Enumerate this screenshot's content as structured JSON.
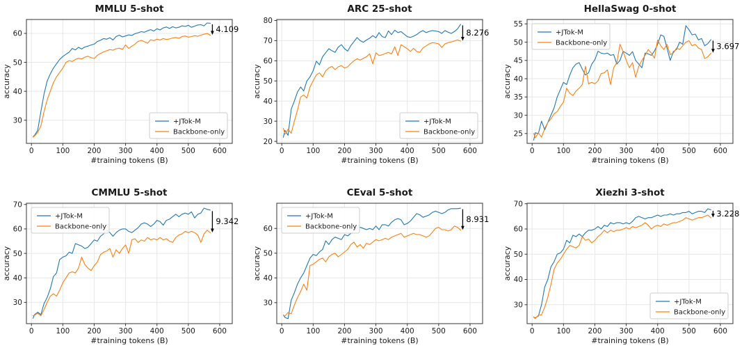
{
  "figure_name": "tokenizer-benchmark-comparison",
  "style": {
    "background": "#ffffff",
    "blue": "#1f77b4",
    "orange": "#ff7f0e",
    "grid_color": "#e7e7e7",
    "spine_color": "#333333",
    "tick_color": "#333333",
    "text_color": "#1a1a1a",
    "annotation_color": "#000000",
    "legend_border": "#cccccc",
    "legend_bg": "#ffffff"
  },
  "x_tokens": [
    5,
    10,
    20,
    30,
    40,
    50,
    60,
    70,
    80,
    90,
    100,
    110,
    120,
    130,
    140,
    150,
    160,
    170,
    180,
    190,
    200,
    210,
    220,
    230,
    240,
    250,
    260,
    270,
    280,
    290,
    300,
    310,
    320,
    330,
    340,
    350,
    360,
    370,
    380,
    390,
    400,
    410,
    420,
    430,
    440,
    450,
    460,
    470,
    480,
    490,
    500,
    510,
    520,
    530,
    540,
    550,
    560,
    570
  ],
  "chart_data": [
    {
      "type": "line",
      "title": "MMLU 5-shot",
      "xlabel": "#training tokens (B)",
      "ylabel": "accuracy",
      "xlim": [
        -16,
        640
      ],
      "ylim": [
        22,
        64.8
      ],
      "xticks": [
        0,
        100,
        200,
        300,
        400,
        500,
        600
      ],
      "yticks": [
        30,
        40,
        50,
        60
      ],
      "grid": true,
      "legend_pos": "lower-right",
      "annotation": {
        "label": "4.109"
      },
      "series": [
        {
          "name": "+JTok-M",
          "color_key": "blue",
          "values": [
            24.3,
            24.8,
            26.5,
            33.0,
            39.0,
            43.5,
            46.0,
            48.0,
            49.5,
            51.0,
            52.0,
            52.8,
            53.5,
            54.8,
            54.3,
            55.2,
            54.6,
            55.3,
            55.6,
            56.0,
            56.3,
            57.2,
            57.6,
            58.2,
            58.0,
            58.5,
            57.7,
            58.9,
            59.4,
            58.8,
            59.1,
            59.5,
            59.3,
            59.9,
            60.2,
            60.6,
            60.4,
            60.9,
            61.3,
            60.8,
            61.6,
            61.2,
            61.9,
            62.2,
            61.7,
            62.3,
            61.9,
            62.1,
            62.6,
            62.4,
            62.8,
            62.1,
            62.5,
            62.9,
            63.0,
            62.6,
            63.6,
            63.5
          ]
        },
        {
          "name": "Backbone-only",
          "color_key": "orange",
          "values": [
            24.2,
            24.6,
            25.8,
            28.0,
            33.0,
            37.0,
            40.0,
            43.0,
            45.0,
            46.5,
            48.0,
            50.0,
            50.6,
            50.3,
            51.0,
            51.4,
            51.2,
            51.8,
            52.1,
            51.6,
            51.3,
            52.4,
            53.1,
            53.6,
            54.0,
            54.4,
            54.2,
            54.7,
            54.9,
            54.5,
            56.0,
            54.8,
            55.6,
            56.3,
            57.2,
            57.6,
            57.1,
            56.6,
            57.8,
            57.5,
            58.0,
            57.7,
            58.2,
            57.9,
            58.1,
            58.4,
            58.6,
            58.3,
            58.9,
            59.1,
            58.7,
            58.9,
            59.2,
            59.0,
            59.4,
            59.7,
            60.0,
            59.4
          ]
        }
      ]
    },
    {
      "type": "line",
      "title": "ARC 25-shot",
      "xlabel": "#training tokens (B)",
      "ylabel": "accuracy",
      "xlim": [
        -16,
        640
      ],
      "ylim": [
        19,
        80.5
      ],
      "xticks": [
        0,
        100,
        200,
        300,
        400,
        500,
        600
      ],
      "yticks": [
        20,
        30,
        40,
        50,
        60,
        70,
        80
      ],
      "grid": true,
      "legend_pos": "lower-right",
      "annotation": {
        "label": "8.276"
      },
      "series": [
        {
          "name": "+JTok-M",
          "color_key": "blue",
          "values": [
            22.0,
            25.5,
            23.0,
            36.0,
            40.0,
            44.5,
            47.0,
            45.0,
            50.0,
            52.0,
            55.0,
            59.8,
            58.0,
            62.0,
            64.0,
            66.0,
            65.0,
            64.2,
            66.8,
            68.0,
            66.0,
            64.8,
            67.5,
            69.5,
            71.5,
            70.0,
            69.2,
            70.3,
            71.2,
            72.5,
            71.4,
            74.0,
            72.0,
            71.5,
            74.8,
            73.0,
            75.2,
            74.0,
            74.5,
            73.2,
            72.0,
            71.6,
            72.2,
            73.0,
            74.2,
            75.0,
            74.0,
            74.6,
            75.0,
            74.8,
            74.5,
            73.6,
            75.0,
            74.2,
            73.6,
            74.5,
            75.8,
            78.1
          ]
        },
        {
          "name": "Backbone-only",
          "color_key": "orange",
          "values": [
            26.5,
            23.5,
            26.0,
            24.0,
            30.0,
            35.5,
            42.0,
            43.0,
            41.5,
            47.0,
            50.0,
            53.0,
            54.0,
            52.0,
            55.0,
            56.5,
            57.2,
            55.6,
            57.0,
            57.6,
            56.4,
            57.0,
            58.6,
            60.0,
            61.0,
            60.4,
            61.2,
            62.0,
            63.5,
            58.5,
            64.0,
            62.6,
            63.0,
            63.6,
            64.2,
            63.4,
            67.0,
            62.6,
            68.0,
            67.0,
            66.0,
            64.6,
            66.2,
            64.6,
            64.2,
            66.4,
            67.4,
            68.4,
            69.0,
            68.8,
            68.4,
            66.6,
            68.4,
            69.0,
            69.4,
            69.8,
            70.4,
            69.8
          ]
        }
      ]
    },
    {
      "type": "line",
      "title": "HellaSwag 0-shot",
      "xlabel": "#training tokens (B)",
      "ylabel": "accuracy",
      "xlim": [
        -16,
        640
      ],
      "ylim": [
        22.3,
        56.2
      ],
      "xticks": [
        0,
        100,
        200,
        300,
        400,
        500,
        600
      ],
      "yticks": [
        25,
        30,
        35,
        40,
        45,
        50,
        55
      ],
      "grid": true,
      "legend_pos": "upper-left",
      "annotation": {
        "label": "3.697"
      },
      "series": [
        {
          "name": "+JTok-M",
          "color_key": "blue",
          "values": [
            23.2,
            25.2,
            25.0,
            28.4,
            26.0,
            28.0,
            30.0,
            32.0,
            35.0,
            37.0,
            39.0,
            38.4,
            41.0,
            43.0,
            44.0,
            44.4,
            42.6,
            41.0,
            41.6,
            44.0,
            45.2,
            47.5,
            47.0,
            46.8,
            47.0,
            46.4,
            46.6,
            44.0,
            45.0,
            47.5,
            47.0,
            46.4,
            47.4,
            45.0,
            44.0,
            43.0,
            47.0,
            46.8,
            46.4,
            47.6,
            49.4,
            52.0,
            51.6,
            48.4,
            45.0,
            47.4,
            48.0,
            50.0,
            49.4,
            54.5,
            53.4,
            52.0,
            52.2,
            50.6,
            51.0,
            49.0,
            49.6,
            50.7
          ]
        },
        {
          "name": "Backbone-only",
          "color_key": "orange",
          "values": [
            25.0,
            23.8,
            25.2,
            24.0,
            26.4,
            28.0,
            29.0,
            30.4,
            31.0,
            32.4,
            33.6,
            37.4,
            36.0,
            35.4,
            36.6,
            37.4,
            38.4,
            43.4,
            38.6,
            39.0,
            38.6,
            39.4,
            41.4,
            41.6,
            42.4,
            38.4,
            43.0,
            44.4,
            49.4,
            47.4,
            45.0,
            43.0,
            44.4,
            40.4,
            43.4,
            45.0,
            46.4,
            48.0,
            47.0,
            45.6,
            50.6,
            49.0,
            48.0,
            49.4,
            46.6,
            47.0,
            48.4,
            48.0,
            49.0,
            50.0,
            50.4,
            49.0,
            49.4,
            48.4,
            48.0,
            45.5,
            46.0,
            47.0
          ]
        }
      ]
    },
    {
      "type": "line",
      "title": "CMMLU 5-shot",
      "xlabel": "#training tokens (B)",
      "ylabel": "accuracy",
      "xlim": [
        -16,
        640
      ],
      "ylim": [
        21.3,
        70.5
      ],
      "xticks": [
        0,
        100,
        200,
        300,
        400,
        500,
        600
      ],
      "yticks": [
        30,
        40,
        50,
        60,
        70
      ],
      "grid": true,
      "legend_pos": "upper-left",
      "annotation": {
        "label": "9.342"
      },
      "series": [
        {
          "name": "+JTok-M",
          "color_key": "blue",
          "values": [
            23.5,
            25.0,
            26.0,
            25.0,
            29.5,
            32.0,
            35.5,
            40.5,
            42.0,
            47.5,
            48.5,
            49.0,
            50.5,
            50.0,
            54.0,
            53.5,
            53.0,
            52.0,
            52.5,
            54.0,
            55.5,
            55.0,
            57.0,
            58.0,
            59.5,
            58.5,
            57.0,
            58.5,
            59.5,
            60.0,
            60.0,
            59.0,
            58.5,
            59.5,
            60.5,
            62.0,
            62.5,
            62.0,
            61.0,
            62.0,
            63.5,
            63.0,
            61.5,
            63.5,
            64.0,
            65.0,
            66.0,
            65.0,
            66.0,
            66.5,
            66.0,
            67.0,
            64.5,
            66.0,
            66.5,
            68.5,
            68.0,
            67.7
          ]
        },
        {
          "name": "Backbone-only",
          "color_key": "orange",
          "values": [
            24.5,
            24.8,
            25.5,
            24.5,
            27.0,
            30.0,
            32.5,
            33.5,
            32.5,
            35.0,
            38.0,
            40.0,
            42.0,
            42.5,
            42.0,
            44.0,
            48.5,
            45.5,
            44.0,
            43.0,
            45.0,
            46.5,
            49.5,
            50.5,
            51.0,
            52.0,
            48.5,
            51.5,
            50.0,
            52.0,
            53.5,
            50.0,
            55.5,
            56.0,
            54.5,
            55.5,
            55.0,
            56.5,
            55.5,
            56.0,
            55.5,
            56.5,
            55.5,
            56.0,
            55.0,
            54.5,
            56.5,
            57.5,
            58.0,
            59.0,
            58.5,
            59.0,
            58.5,
            57.5,
            54.5,
            58.0,
            59.5,
            58.4
          ]
        }
      ]
    },
    {
      "type": "line",
      "title": "CEval 5-shot",
      "xlabel": "#training tokens (B)",
      "ylabel": "accuracy",
      "xlim": [
        -16,
        640
      ],
      "ylim": [
        21.5,
        70.2
      ],
      "xticks": [
        0,
        100,
        200,
        300,
        400,
        500,
        600
      ],
      "yticks": [
        30,
        40,
        50,
        60
      ],
      "grid": true,
      "legend_pos": "upper-left",
      "annotation": {
        "label": "8.931"
      },
      "series": [
        {
          "name": "+JTok-M",
          "color_key": "blue",
          "values": [
            25.0,
            24.0,
            23.5,
            31.0,
            34.0,
            37.5,
            40.0,
            42.0,
            45.0,
            48.0,
            49.5,
            49.0,
            50.5,
            51.5,
            55.0,
            53.5,
            55.5,
            56.5,
            56.0,
            55.5,
            57.5,
            57.0,
            58.0,
            59.0,
            60.0,
            60.5,
            60.0,
            59.5,
            60.0,
            59.5,
            61.0,
            59.5,
            61.5,
            61.5,
            61.0,
            62.5,
            63.5,
            64.0,
            63.5,
            61.5,
            62.0,
            63.0,
            64.5,
            66.0,
            65.5,
            64.5,
            65.0,
            65.5,
            66.5,
            67.0,
            66.5,
            66.0,
            66.5,
            67.5,
            68.0,
            68.0,
            68.0,
            68.2
          ]
        },
        {
          "name": "Backbone-only",
          "color_key": "orange",
          "values": [
            25.0,
            24.5,
            26.0,
            25.5,
            29.0,
            32.0,
            34.5,
            37.5,
            35.0,
            45.0,
            45.5,
            46.5,
            47.5,
            48.0,
            46.5,
            48.5,
            49.5,
            50.0,
            48.5,
            49.5,
            50.5,
            51.5,
            53.5,
            54.5,
            52.5,
            53.5,
            52.0,
            54.0,
            53.5,
            54.5,
            55.5,
            55.0,
            55.5,
            56.0,
            55.5,
            56.5,
            57.0,
            57.5,
            58.0,
            56.5,
            57.0,
            57.5,
            58.0,
            57.5,
            57.5,
            57.0,
            56.5,
            57.0,
            58.5,
            60.0,
            60.5,
            59.5,
            59.5,
            59.0,
            59.5,
            61.0,
            60.5,
            59.3
          ]
        }
      ]
    },
    {
      "type": "line",
      "title": "Xiezhi 3-shot",
      "xlabel": "#training tokens (B)",
      "ylabel": "accuracy",
      "xlim": [
        -16,
        640
      ],
      "ylim": [
        22.5,
        70.2
      ],
      "xticks": [
        0,
        100,
        200,
        300,
        400,
        500,
        600
      ],
      "yticks": [
        30,
        40,
        50,
        60,
        70
      ],
      "grid": true,
      "legend_pos": "lower-right",
      "annotation": {
        "label": "3.228"
      },
      "series": [
        {
          "name": "+JTok-M",
          "color_key": "blue",
          "values": [
            25.0,
            24.8,
            25.5,
            30.0,
            37.0,
            40.0,
            45.0,
            47.0,
            50.0,
            50.5,
            52.0,
            55.5,
            54.5,
            57.5,
            57.0,
            58.0,
            57.0,
            58.5,
            59.5,
            59.5,
            60.0,
            61.0,
            60.0,
            61.5,
            61.0,
            62.5,
            62.0,
            62.5,
            62.5,
            62.0,
            62.5,
            62.0,
            63.0,
            64.5,
            65.0,
            64.5,
            64.0,
            64.5,
            64.5,
            65.0,
            65.5,
            65.0,
            65.5,
            65.5,
            66.0,
            65.5,
            66.0,
            66.0,
            66.5,
            66.5,
            67.0,
            66.0,
            66.5,
            67.0,
            67.0,
            66.5,
            68.0,
            67.6
          ]
        },
        {
          "name": "Backbone-only",
          "color_key": "orange",
          "values": [
            25.2,
            24.5,
            25.8,
            26.0,
            29.0,
            33.0,
            38.0,
            44.0,
            46.5,
            48.0,
            50.0,
            52.0,
            53.5,
            53.0,
            52.5,
            53.5,
            57.0,
            55.5,
            56.0,
            54.5,
            55.5,
            57.0,
            58.0,
            59.5,
            58.5,
            59.5,
            59.0,
            59.5,
            59.5,
            60.0,
            60.5,
            60.0,
            61.0,
            60.5,
            61.0,
            61.5,
            62.5,
            61.5,
            60.0,
            61.0,
            61.5,
            61.0,
            62.0,
            61.5,
            62.0,
            62.5,
            62.5,
            63.0,
            63.5,
            64.5,
            64.0,
            63.5,
            64.0,
            64.5,
            64.5,
            65.0,
            65.5,
            64.4
          ]
        }
      ]
    }
  ]
}
